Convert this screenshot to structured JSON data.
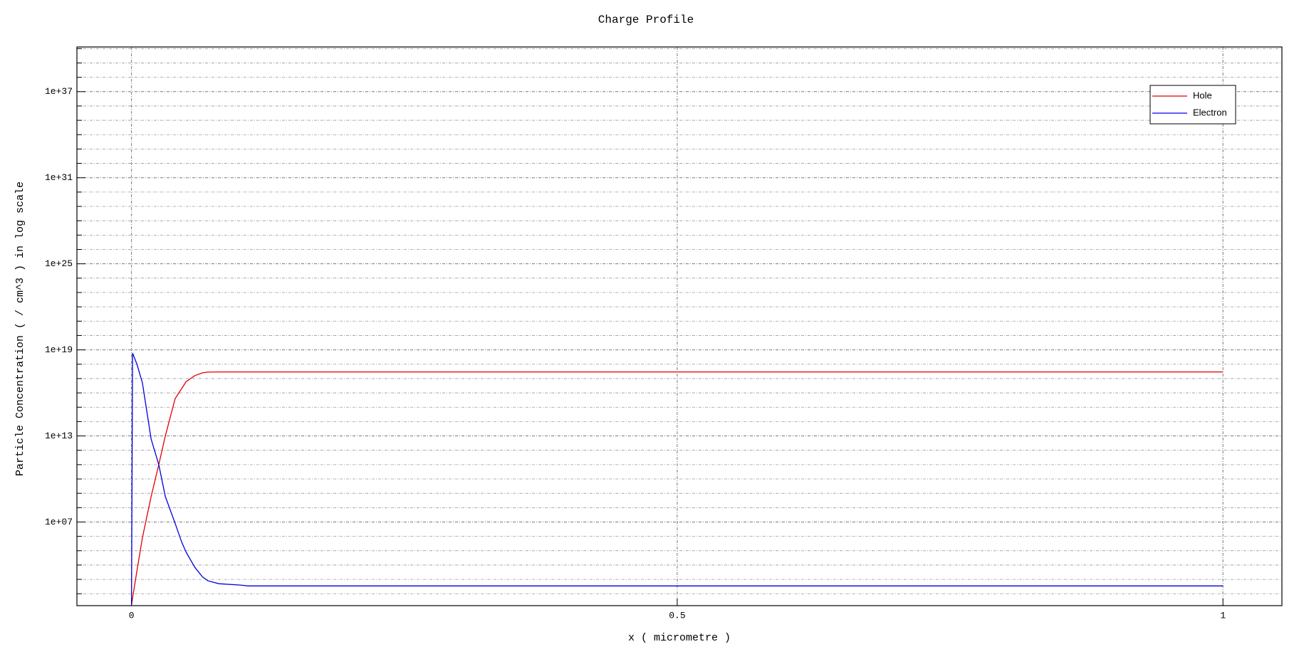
{
  "chart_data": {
    "type": "line",
    "title": "Charge Profile",
    "x_label": "x ( micrometre )",
    "y_label": "Particle Concentration ( / cm^3 ) in log scale",
    "y_scale": "log",
    "grid": true,
    "legend": "top-right",
    "x": [
      0,
      0.001,
      0.005,
      0.01,
      0.018,
      0.025,
      0.031,
      0.04,
      0.046,
      0.05,
      0.058,
      0.065,
      0.07,
      0.08,
      0.1,
      0.107,
      0.2,
      0.5,
      1.0
    ],
    "series": [
      {
        "name": "Hole",
        "color": "#e00000",
        "values": [
          15,
          50,
          4000,
          800000,
          600000000,
          100000000000,
          10000000000000,
          4000000000000000.0,
          2e+16,
          6e+16,
          1.6e+17,
          2.5e+17,
          2.8e+17,
          2.9e+17,
          2.9e+17,
          2.9e+17,
          2.9e+17,
          2.9e+17,
          2.9e+17
        ]
      },
      {
        "name": "Electron",
        "color": "#0000e0",
        "values": [
          15,
          6e+18,
          1e+18,
          5e+16,
          6000000000000,
          100000000000,
          600000000,
          8000000,
          400000,
          80000,
          7000,
          1500,
          800,
          500,
          400,
          350,
          350,
          350,
          350
        ]
      }
    ],
    "xlim": [
      -0.05,
      1.054
    ],
    "xticks": [
      0,
      0.5,
      1
    ],
    "ylim": [
      14.8,
      1.3e+40
    ],
    "yticks": [
      {
        "value": 10000000.0,
        "label": "1e+07"
      },
      {
        "value": 10000000000000.0,
        "label": "1e+13"
      },
      {
        "value": 1e+19,
        "label": "1e+19"
      },
      {
        "value": 1e+25,
        "label": "1e+25"
      },
      {
        "value": 1e+31,
        "label": "1e+31"
      },
      {
        "value": 1e+37,
        "label": "1e+37"
      }
    ],
    "y_minor_ticks": [
      100,
      1000,
      10000,
      100000,
      1000000,
      100000000,
      1000000000,
      10000000000,
      100000000000,
      1000000000000,
      100000000000000,
      1000000000000000.0,
      1e+16,
      1e+17,
      1e+18,
      1e+20,
      1e+21,
      1e+22,
      1e+23,
      1e+24,
      1e+26,
      1e+27,
      1e+28,
      1e+29,
      1e+30,
      1e+32,
      1e+33,
      1e+34,
      1e+35,
      1e+36,
      1e+38,
      1e+39,
      1e+40
    ]
  }
}
